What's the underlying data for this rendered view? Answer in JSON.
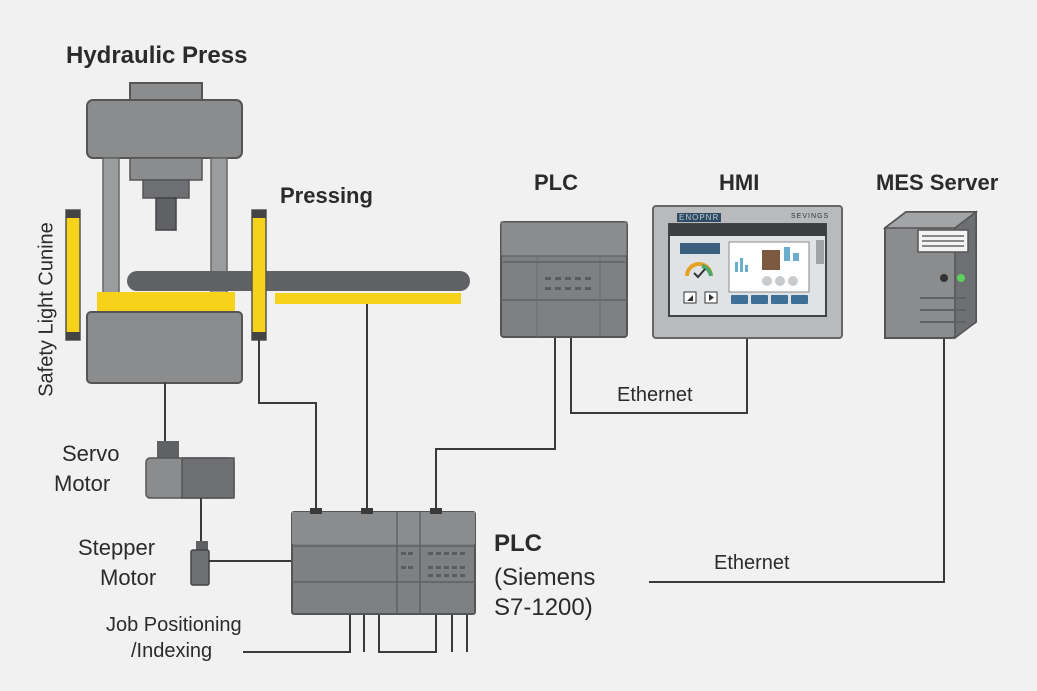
{
  "labels": {
    "hydraulic_press": "Hydraulic Press",
    "pressing": "Pressing",
    "safety_light_curtain": "Safety Light Cunine",
    "servo_motor_line1": "Servo",
    "servo_motor_line2": "Motor",
    "stepper_motor_line1": "Stepper",
    "stepper_motor_line2": "Motor",
    "job_positioning_line1": "Job Positioning",
    "job_positioning_line2": "/Indexing",
    "plc_top": "PLC",
    "hmi": "HMI",
    "mes_server": "MES Server",
    "ethernet_1": "Ethernet",
    "ethernet_2": "Ethernet",
    "plc_main": "PLC",
    "plc_main_model_line1": "(Siemens",
    "plc_main_model_line2": "S7-1200)",
    "hmi_brand_left": "ENOPNR",
    "hmi_brand_right": "SEVINGS"
  },
  "colors": {
    "background": "#f1f1f1",
    "machine_gray": "#8a8c8e",
    "dark_gray": "#5f6164",
    "safety_yellow": "#f7d21a",
    "wire": "#3a3a3a",
    "status_green": "#5bd35b"
  }
}
